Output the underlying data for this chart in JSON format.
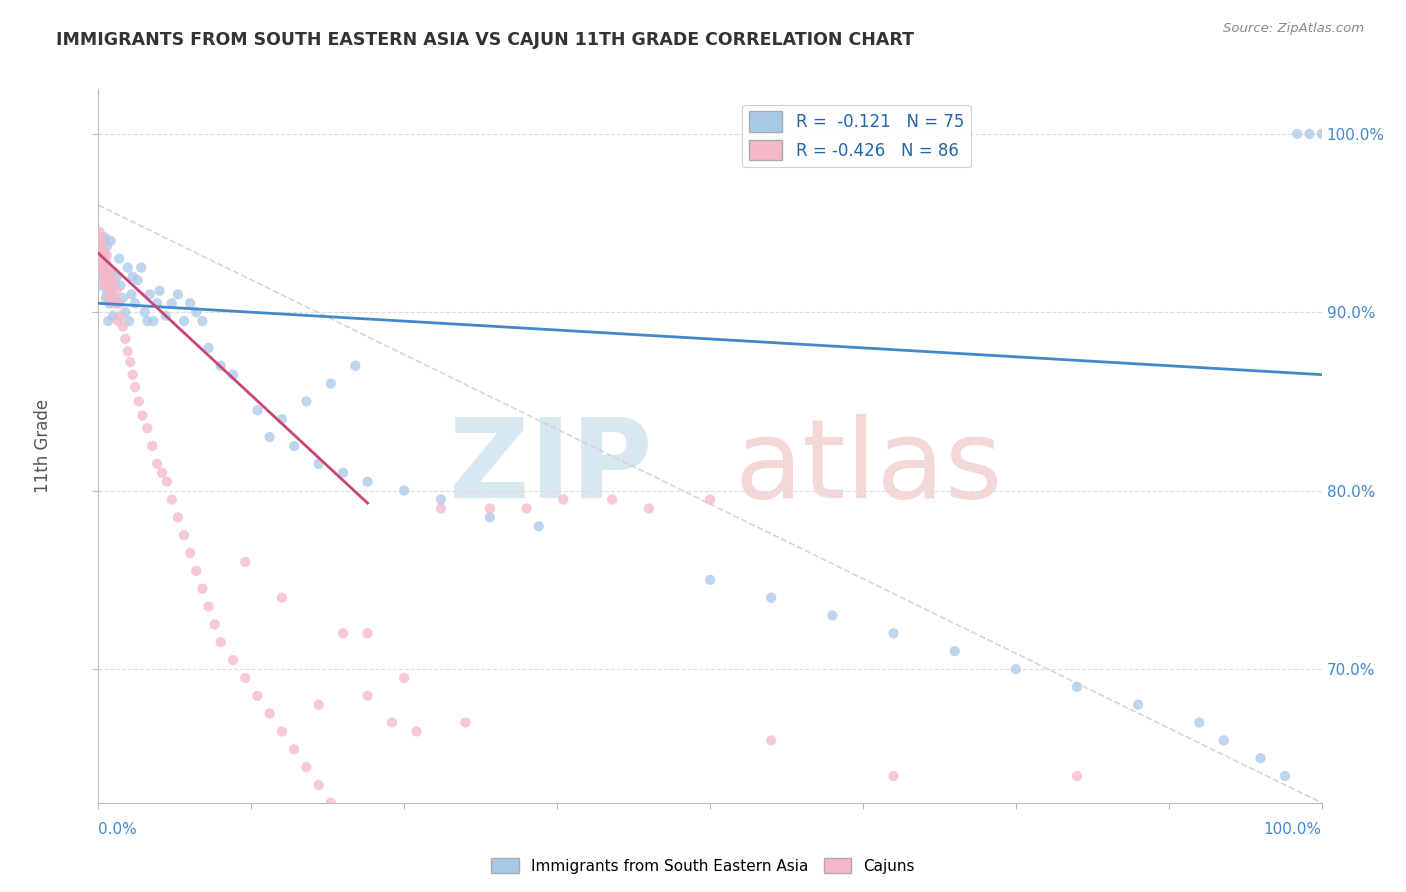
{
  "title": "IMMIGRANTS FROM SOUTH EASTERN ASIA VS CAJUN 11TH GRADE CORRELATION CHART",
  "source": "Source: ZipAtlas.com",
  "legend_blue_label": "Immigrants from South Eastern Asia",
  "legend_pink_label": "Cajuns",
  "R_blue": -0.121,
  "N_blue": 75,
  "R_pink": -0.426,
  "N_pink": 86,
  "blue_color": "#a8c8e8",
  "pink_color": "#f4b8c8",
  "blue_line_color": "#4488cc",
  "pink_line_color": "#cc4477",
  "ref_line_color": "#cccccc",
  "grid_color": "#dddddd",
  "xmin": 0.0,
  "xmax": 1.0,
  "ymin": 0.625,
  "ymax": 1.025,
  "yticks": [
    0.7,
    0.8,
    0.9,
    1.0
  ],
  "ytick_labels": [
    "70.0%",
    "80.0%",
    "90.0%",
    "100.0%"
  ],
  "blue_x": [
    0.001,
    0.002,
    0.003,
    0.003,
    0.004,
    0.005,
    0.005,
    0.006,
    0.007,
    0.007,
    0.008,
    0.009,
    0.01,
    0.01,
    0.011,
    0.012,
    0.013,
    0.015,
    0.016,
    0.017,
    0.018,
    0.02,
    0.022,
    0.024,
    0.025,
    0.027,
    0.028,
    0.03,
    0.032,
    0.035,
    0.038,
    0.04,
    0.042,
    0.045,
    0.048,
    0.05,
    0.055,
    0.06,
    0.065,
    0.07,
    0.075,
    0.08,
    0.085,
    0.09,
    0.1,
    0.11,
    0.13,
    0.16,
    0.18,
    0.2,
    0.22,
    0.25,
    0.28,
    0.32,
    0.36,
    0.21,
    0.19,
    0.17,
    0.15,
    0.14,
    0.5,
    0.55,
    0.6,
    0.65,
    0.7,
    0.75,
    0.8,
    0.85,
    0.9,
    0.92,
    0.95,
    0.97,
    1.0,
    0.99,
    0.98
  ],
  "blue_y": [
    0.915,
    0.928,
    0.932,
    0.921,
    0.935,
    0.918,
    0.942,
    0.908,
    0.937,
    0.912,
    0.895,
    0.905,
    0.922,
    0.94,
    0.91,
    0.898,
    0.915,
    0.92,
    0.905,
    0.93,
    0.915,
    0.908,
    0.9,
    0.925,
    0.895,
    0.91,
    0.92,
    0.905,
    0.918,
    0.925,
    0.9,
    0.895,
    0.91,
    0.895,
    0.905,
    0.912,
    0.898,
    0.905,
    0.91,
    0.895,
    0.905,
    0.9,
    0.895,
    0.88,
    0.87,
    0.865,
    0.845,
    0.825,
    0.815,
    0.81,
    0.805,
    0.8,
    0.795,
    0.785,
    0.78,
    0.87,
    0.86,
    0.85,
    0.84,
    0.83,
    0.75,
    0.74,
    0.73,
    0.72,
    0.71,
    0.7,
    0.69,
    0.68,
    0.67,
    0.66,
    0.65,
    0.64,
    1.0,
    1.0,
    1.0
  ],
  "pink_x": [
    0.0005,
    0.001,
    0.001,
    0.001,
    0.002,
    0.002,
    0.002,
    0.003,
    0.003,
    0.003,
    0.004,
    0.004,
    0.004,
    0.005,
    0.005,
    0.005,
    0.006,
    0.006,
    0.007,
    0.007,
    0.008,
    0.008,
    0.009,
    0.009,
    0.01,
    0.01,
    0.011,
    0.011,
    0.012,
    0.013,
    0.014,
    0.015,
    0.016,
    0.017,
    0.018,
    0.02,
    0.022,
    0.024,
    0.026,
    0.028,
    0.03,
    0.033,
    0.036,
    0.04,
    0.044,
    0.048,
    0.052,
    0.056,
    0.06,
    0.065,
    0.07,
    0.075,
    0.08,
    0.085,
    0.09,
    0.095,
    0.1,
    0.11,
    0.12,
    0.13,
    0.14,
    0.15,
    0.16,
    0.17,
    0.18,
    0.19,
    0.2,
    0.22,
    0.24,
    0.26,
    0.12,
    0.18,
    0.25,
    0.3,
    0.22,
    0.15,
    0.28,
    0.32,
    0.55,
    0.65,
    0.8,
    0.35,
    0.38,
    0.42,
    0.45,
    0.5
  ],
  "pink_y": [
    0.935,
    0.945,
    0.938,
    0.928,
    0.942,
    0.935,
    0.925,
    0.938,
    0.932,
    0.922,
    0.935,
    0.928,
    0.918,
    0.932,
    0.925,
    0.915,
    0.928,
    0.918,
    0.932,
    0.922,
    0.925,
    0.915,
    0.918,
    0.908,
    0.922,
    0.912,
    0.915,
    0.905,
    0.918,
    0.908,
    0.905,
    0.912,
    0.895,
    0.905,
    0.898,
    0.892,
    0.885,
    0.878,
    0.872,
    0.865,
    0.858,
    0.85,
    0.842,
    0.835,
    0.825,
    0.815,
    0.81,
    0.805,
    0.795,
    0.785,
    0.775,
    0.765,
    0.755,
    0.745,
    0.735,
    0.725,
    0.715,
    0.705,
    0.695,
    0.685,
    0.675,
    0.665,
    0.655,
    0.645,
    0.635,
    0.625,
    0.72,
    0.685,
    0.67,
    0.665,
    0.76,
    0.68,
    0.695,
    0.67,
    0.72,
    0.74,
    0.79,
    0.79,
    0.66,
    0.64,
    0.64,
    0.79,
    0.795,
    0.795,
    0.79,
    0.795
  ],
  "blue_trend_x": [
    0.0,
    1.0
  ],
  "blue_trend_y": [
    0.905,
    0.865
  ],
  "pink_trend_x": [
    0.0,
    0.22
  ],
  "pink_trend_y": [
    0.933,
    0.793
  ],
  "ref_line_x": [
    0.0,
    1.0
  ],
  "ref_line_y": [
    0.96,
    0.625
  ]
}
